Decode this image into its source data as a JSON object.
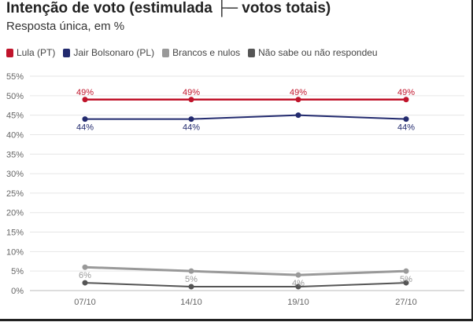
{
  "header": {
    "title": "Intenção de voto (estimulada ├─ votos totais)",
    "subtitle": "Resposta única, em %"
  },
  "chart_data": {
    "type": "line",
    "title": "Intenção de voto (estimulada ├─ votos totais)",
    "subtitle": "Resposta única, em %",
    "xlabel": "",
    "ylabel": "",
    "categories": [
      "07/10",
      "14/10",
      "19/10",
      "27/10"
    ],
    "y_ticks": [
      "0%",
      "5%",
      "10%",
      "15%",
      "20%",
      "25%",
      "30%",
      "35%",
      "40%",
      "45%",
      "50%",
      "55%"
    ],
    "ylim": [
      0,
      55
    ],
    "grid": true,
    "legend_position": "top-left",
    "series": [
      {
        "name": "Lula (PT)",
        "color": "#c0142b",
        "values": [
          49,
          49,
          49,
          49
        ],
        "labels": [
          "49%",
          "49%",
          "49%",
          "49%"
        ],
        "label_pos": "above",
        "width": 2.5
      },
      {
        "name": "Jair Bolsonaro (PL)",
        "color": "#222a6e",
        "values": [
          44,
          44,
          45,
          44
        ],
        "labels": [
          "44%",
          "44%",
          "",
          "44%"
        ],
        "label_pos": "below",
        "width": 2
      },
      {
        "name": "Brancos e nulos",
        "color": "#999999",
        "values": [
          6,
          5,
          4,
          5
        ],
        "labels": [
          "6%",
          "5%",
          "4%",
          "5%"
        ],
        "label_pos": "below",
        "width": 3
      },
      {
        "name": "Não sabe ou não respondeu",
        "color": "#555555",
        "values": [
          2,
          1,
          1,
          2
        ],
        "labels": [
          "",
          "",
          "",
          ""
        ],
        "label_pos": "below",
        "width": 2
      }
    ]
  }
}
